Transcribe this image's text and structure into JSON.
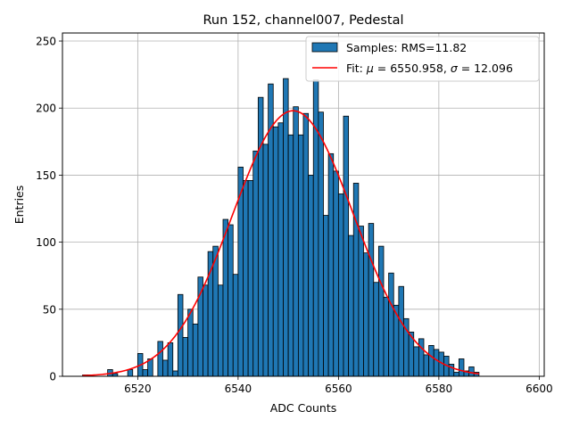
{
  "chart_data": {
    "type": "bar",
    "title": "Run 152, channel007, Pedestal",
    "xlabel": "ADC Counts",
    "ylabel": "Entries",
    "xlim": [
      6505,
      6601
    ],
    "ylim": [
      0,
      256
    ],
    "xticks": [
      6520,
      6540,
      6560,
      6580,
      6600
    ],
    "yticks": [
      0,
      50,
      100,
      150,
      200,
      250
    ],
    "grid": true,
    "legend_position": "top-right",
    "bin_edges_start": 6509,
    "bin_width": 1,
    "histogram": {
      "name": "Samples: RMS=11.82",
      "color": "#1f77b4",
      "values": [
        1,
        1,
        0,
        0,
        0,
        5,
        2,
        0,
        0,
        5,
        0,
        17,
        5,
        13,
        0,
        26,
        12,
        25,
        4,
        61,
        29,
        50,
        39,
        74,
        68,
        93,
        97,
        68,
        117,
        113,
        76,
        156,
        146,
        146,
        168,
        208,
        173,
        218,
        186,
        189,
        222,
        180,
        201,
        180,
        196,
        150,
        221,
        197,
        120,
        166,
        153,
        136,
        194,
        105,
        144,
        112,
        92,
        114,
        70,
        97,
        59,
        77,
        53,
        67,
        43,
        33,
        22,
        28,
        16,
        23,
        20,
        18,
        15,
        9,
        3,
        13,
        4,
        7,
        3,
        0,
        0
      ],
      "bar_color": "#1f77b4"
    },
    "fit": {
      "name_prefix": "Fit: ",
      "mu_symbol": "μ",
      "mu_value": " = 6550.958, ",
      "sigma_symbol": "σ",
      "sigma_value": " = 12.096",
      "mu": 6550.958,
      "sigma": 12.096,
      "amplitude": 198,
      "x_range": [
        6509,
        6588
      ],
      "color": "#ff0000"
    }
  }
}
